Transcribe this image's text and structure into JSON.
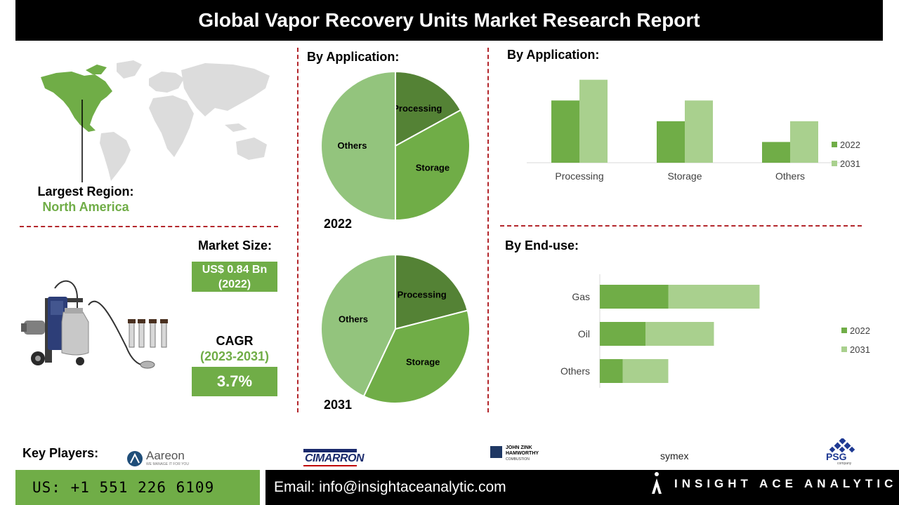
{
  "title": "Global Vapor Recovery Units Market Research Report",
  "region": {
    "label": "Largest Region:",
    "value": "North America"
  },
  "market_size": {
    "label": "Market Size:",
    "value_line1": "US$ 0.84 Bn",
    "value_line2": "(2022)"
  },
  "cagr": {
    "label": "CAGR",
    "period": "(2023-2031)",
    "value": "3.7%"
  },
  "key_players": {
    "label": "Key Players:",
    "logos": [
      "Aareon",
      "WE MANAGE IT FOR YOU",
      "CIMARRON",
      "JOHN ZINK",
      "HAMWORTHY",
      "COMBUSTION",
      "symex",
      "PSG",
      "company"
    ]
  },
  "footer": {
    "phone": "US: +1 551 226 6109",
    "email": "Email: info@insightaceanalytic.com",
    "brand": "INSIGHT ACE ANALYTIC"
  },
  "colors": {
    "dark_green": "#548235",
    "mid_green": "#70ad47",
    "light_green": "#a9d08e",
    "pie_light": "#93c47d",
    "red_dash": "#b3262b"
  },
  "chart_data": [
    {
      "type": "pie",
      "title": "By Application:",
      "year_label": "2022",
      "slices": [
        {
          "label": "Processing",
          "value": 17
        },
        {
          "label": "Storage",
          "value": 33
        },
        {
          "label": "Others",
          "value": 50
        }
      ]
    },
    {
      "type": "pie",
      "title": "",
      "year_label": "2031",
      "slices": [
        {
          "label": "Processing",
          "value": 21
        },
        {
          "label": "Storage",
          "value": 36
        },
        {
          "label": "Others",
          "value": 43
        }
      ]
    },
    {
      "type": "bar",
      "title": "By Application:",
      "categories": [
        "Processing",
        "Storage",
        "Others"
      ],
      "series": [
        {
          "name": "2022",
          "values": [
            3,
            2,
            1
          ]
        },
        {
          "name": "2031",
          "values": [
            4,
            3,
            2
          ]
        }
      ],
      "ylim": [
        0,
        4.5
      ],
      "legend": "right"
    },
    {
      "type": "bar",
      "orientation": "horizontal",
      "stacked": true,
      "title": "By End-use:",
      "categories": [
        "Gas",
        "Oil",
        "Others"
      ],
      "series": [
        {
          "name": "2022",
          "values": [
            3,
            2,
            1
          ]
        },
        {
          "name": "2031",
          "values": [
            4,
            3,
            2
          ]
        }
      ],
      "xlim": [
        0,
        11
      ],
      "legend": "right"
    }
  ]
}
